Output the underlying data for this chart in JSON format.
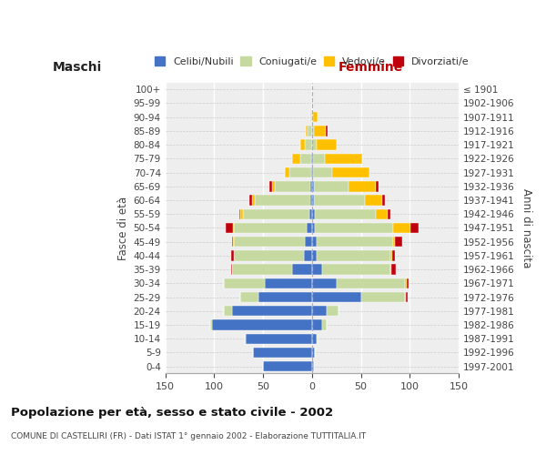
{
  "age_groups": [
    "0-4",
    "5-9",
    "10-14",
    "15-19",
    "20-24",
    "25-29",
    "30-34",
    "35-39",
    "40-44",
    "45-49",
    "50-54",
    "55-59",
    "60-64",
    "65-69",
    "70-74",
    "75-79",
    "80-84",
    "85-89",
    "90-94",
    "95-99",
    "100+"
  ],
  "birth_years": [
    "1997-2001",
    "1992-1996",
    "1987-1991",
    "1982-1986",
    "1977-1981",
    "1972-1976",
    "1967-1971",
    "1962-1966",
    "1957-1961",
    "1952-1956",
    "1947-1951",
    "1942-1946",
    "1937-1941",
    "1932-1936",
    "1927-1931",
    "1922-1926",
    "1917-1921",
    "1912-1916",
    "1907-1911",
    "1902-1906",
    "≤ 1901"
  ],
  "maschi_celibi": [
    50,
    60,
    68,
    102,
    82,
    55,
    48,
    20,
    8,
    7,
    5,
    3,
    2,
    2,
    1,
    1,
    0,
    0,
    0,
    0,
    0
  ],
  "maschi_coniugati": [
    0,
    0,
    1,
    2,
    8,
    18,
    42,
    62,
    72,
    73,
    75,
    68,
    56,
    36,
    22,
    11,
    7,
    4,
    1,
    0,
    0
  ],
  "maschi_vedovi": [
    0,
    0,
    0,
    0,
    0,
    0,
    0,
    0,
    0,
    1,
    1,
    2,
    3,
    3,
    5,
    8,
    5,
    2,
    1,
    0,
    0
  ],
  "maschi_divorziati": [
    0,
    0,
    0,
    0,
    0,
    0,
    0,
    1,
    3,
    1,
    7,
    1,
    3,
    3,
    0,
    0,
    0,
    0,
    0,
    0,
    0
  ],
  "femmine_nubili": [
    2,
    3,
    5,
    10,
    15,
    50,
    25,
    10,
    5,
    5,
    3,
    3,
    2,
    2,
    1,
    1,
    0,
    0,
    0,
    0,
    0
  ],
  "femmine_coniugate": [
    0,
    0,
    1,
    5,
    12,
    45,
    70,
    70,
    75,
    78,
    80,
    62,
    52,
    35,
    20,
    12,
    5,
    2,
    1,
    0,
    0
  ],
  "femmine_vedove": [
    0,
    0,
    0,
    0,
    0,
    1,
    2,
    1,
    2,
    2,
    18,
    12,
    18,
    28,
    38,
    38,
    20,
    12,
    5,
    1,
    0
  ],
  "femmine_divorziate": [
    0,
    0,
    0,
    0,
    0,
    2,
    2,
    5,
    3,
    7,
    8,
    3,
    3,
    3,
    0,
    0,
    0,
    2,
    0,
    0,
    0
  ],
  "color_celibi": "#4472c4",
  "color_coniugati": "#c5d9a0",
  "color_vedovi": "#ffc000",
  "color_divorziati": "#c0000c",
  "title": "Popolazione per età, sesso e stato civile - 2002",
  "subtitle": "COMUNE DI CASTELLIRI (FR) - Dati ISTAT 1° gennaio 2002 - Elaborazione TUTTITALIA.IT",
  "ylabel_left": "Fasce di età",
  "ylabel_right": "Anni di nascita",
  "label_maschi": "Maschi",
  "label_femmine": "Femmine",
  "legend_labels": [
    "Celibi/Nubili",
    "Coniugati/e",
    "Vedovi/e",
    "Divorziati/e"
  ],
  "xlim": 150,
  "bg_color": "#eeeeee",
  "fig_bg": "#ffffff"
}
